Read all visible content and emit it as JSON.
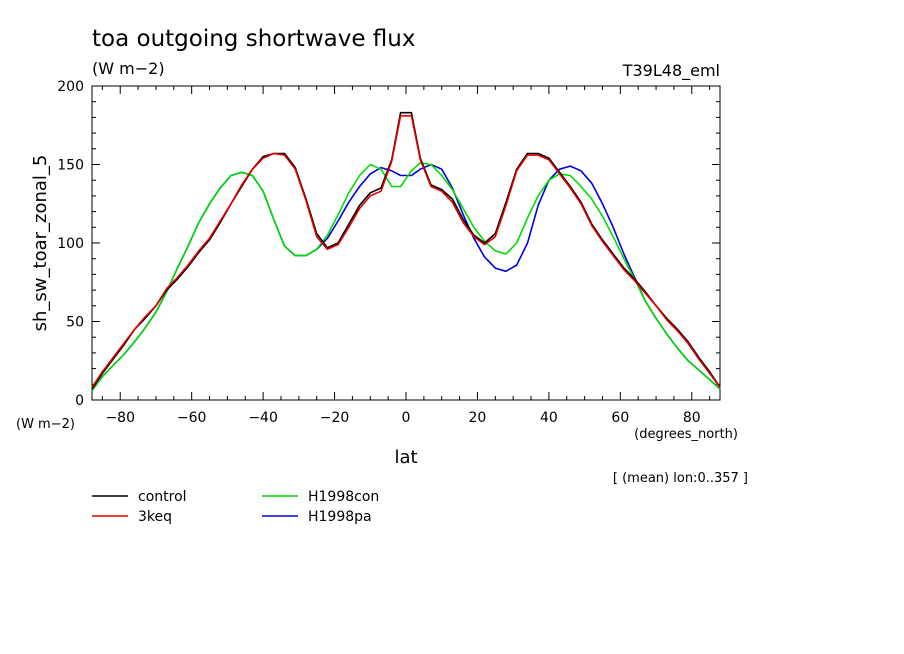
{
  "chart_data": {
    "type": "line",
    "title": "toa outgoing shortwave flux",
    "units_label": "(W m−2)",
    "experiment": "T39L48_eml",
    "ylabel": "sh_sw_toar_zonal_5",
    "y_units_label": "(W m−2)",
    "xlabel": "lat",
    "x_units_label": "(degrees_north)",
    "averaging_note": "[ (mean) lon:0..357 ]",
    "xlim": [
      -87.9,
      87.9
    ],
    "ylim": [
      0,
      200
    ],
    "x_ticks": [
      -80,
      -60,
      -40,
      -20,
      0,
      20,
      40,
      60,
      80
    ],
    "y_ticks": [
      0,
      50,
      100,
      150,
      200
    ],
    "grid": false,
    "legend_placement": "bottom-left",
    "series": [
      {
        "name": "control",
        "color": "#000000",
        "x": [
          -87.9,
          -85,
          -82,
          -79,
          -76,
          -73,
          -70,
          -67,
          -64,
          -61,
          -58,
          -55,
          -52,
          -49,
          -46,
          -43,
          -40,
          -37,
          -34,
          -31,
          -28,
          -25,
          -22,
          -19,
          -16,
          -13,
          -10,
          -7,
          -4,
          -1.5,
          1.5,
          4,
          7,
          10,
          13,
          16,
          19,
          22,
          25,
          28,
          31,
          34,
          37,
          40,
          43,
          46,
          49,
          52,
          55,
          58,
          61,
          64,
          67,
          70,
          73,
          76,
          79,
          82,
          85,
          87.9
        ],
        "y": [
          7,
          17,
          26,
          35,
          45,
          52,
          60,
          70,
          77,
          85,
          94,
          102,
          113,
          125,
          136,
          147,
          155,
          157,
          157,
          148,
          128,
          106,
          97,
          100,
          112,
          124,
          132,
          135,
          153,
          183,
          183,
          154,
          137,
          134,
          128,
          115,
          105,
          100,
          106,
          126,
          147,
          157,
          157,
          154,
          145,
          136,
          126,
          112,
          102,
          93,
          84,
          77,
          69,
          60,
          52,
          45,
          37,
          27,
          18,
          8
        ]
      },
      {
        "name": "3keq",
        "color": "#e00000",
        "x": [
          -87.9,
          -85,
          -82,
          -79,
          -76,
          -73,
          -70,
          -67,
          -64,
          -61,
          -58,
          -55,
          -52,
          -49,
          -46,
          -43,
          -40,
          -37,
          -34,
          -31,
          -28,
          -25,
          -22,
          -19,
          -16,
          -13,
          -10,
          -7,
          -4,
          -1.5,
          1.5,
          4,
          7,
          10,
          13,
          16,
          19,
          22,
          25,
          28,
          31,
          34,
          37,
          40,
          43,
          46,
          49,
          52,
          55,
          58,
          61,
          64,
          67,
          70,
          73,
          76,
          79,
          82,
          85,
          87.9
        ],
        "y": [
          8,
          18,
          27,
          36,
          45,
          53,
          60,
          71,
          78,
          86,
          95,
          103,
          114,
          125,
          137,
          147,
          154,
          157,
          156,
          147,
          127,
          104,
          96,
          99,
          110,
          122,
          130,
          133,
          152,
          181,
          181,
          153,
          136,
          133,
          126,
          113,
          104,
          99,
          104,
          124,
          146,
          156,
          156,
          153,
          144,
          135,
          125,
          111,
          101,
          92,
          83,
          76,
          68,
          60,
          51,
          44,
          36,
          26,
          17,
          8
        ]
      },
      {
        "name": "H1998con",
        "color": "#00dd00",
        "x": [
          -87.9,
          -85,
          -82,
          -79,
          -76,
          -73,
          -70,
          -67,
          -64,
          -61,
          -58,
          -55,
          -52,
          -49,
          -46,
          -43,
          -40,
          -37,
          -34,
          -31,
          -28,
          -25,
          -22,
          -19,
          -16,
          -13,
          -10,
          -7,
          -4,
          -1.5,
          1.5,
          4,
          7,
          10,
          13,
          16,
          19,
          22,
          25,
          28,
          31,
          34,
          37,
          40,
          43,
          46,
          49,
          52,
          55,
          58,
          61,
          64,
          67,
          70,
          73,
          76,
          79,
          82,
          85,
          87.9
        ],
        "y": [
          6,
          15,
          22,
          29,
          37,
          46,
          56,
          69,
          84,
          98,
          113,
          125,
          135,
          143,
          145,
          143,
          133,
          115,
          98,
          92,
          92,
          96,
          105,
          118,
          132,
          143,
          150,
          147,
          136,
          136,
          146,
          151,
          150,
          143,
          134,
          122,
          110,
          101,
          95,
          93,
          100,
          116,
          130,
          140,
          144,
          143,
          136,
          128,
          117,
          104,
          90,
          77,
          63,
          52,
          42,
          33,
          25,
          19,
          13,
          7
        ]
      },
      {
        "name": "H1998pa",
        "color": "#0000dd",
        "x": [
          -87.9,
          -85,
          -82,
          -79,
          -76,
          -73,
          -70,
          -67,
          -64,
          -61,
          -58,
          -55,
          -52,
          -49,
          -46,
          -43,
          -40,
          -37,
          -34,
          -31,
          -28,
          -25,
          -22,
          -19,
          -16,
          -13,
          -10,
          -7,
          -4,
          -1.5,
          1.5,
          4,
          7,
          10,
          13,
          16,
          19,
          22,
          25,
          28,
          31,
          34,
          37,
          40,
          43,
          46,
          49,
          52,
          55,
          58,
          61,
          64,
          67,
          70,
          73,
          76,
          79,
          82,
          85,
          87.9
        ],
        "y": [
          6,
          15,
          22,
          29,
          37,
          46,
          56,
          69,
          84,
          98,
          113,
          125,
          135,
          143,
          145,
          143,
          133,
          115,
          98,
          92,
          92,
          96,
          103,
          114,
          126,
          136,
          144,
          148,
          146,
          143,
          143,
          147,
          150,
          147,
          135,
          118,
          103,
          91,
          84,
          82,
          86,
          100,
          124,
          140,
          147,
          149,
          146,
          138,
          125,
          110,
          93,
          78,
          63,
          52,
          42,
          33,
          25,
          19,
          13,
          7
        ]
      }
    ]
  }
}
